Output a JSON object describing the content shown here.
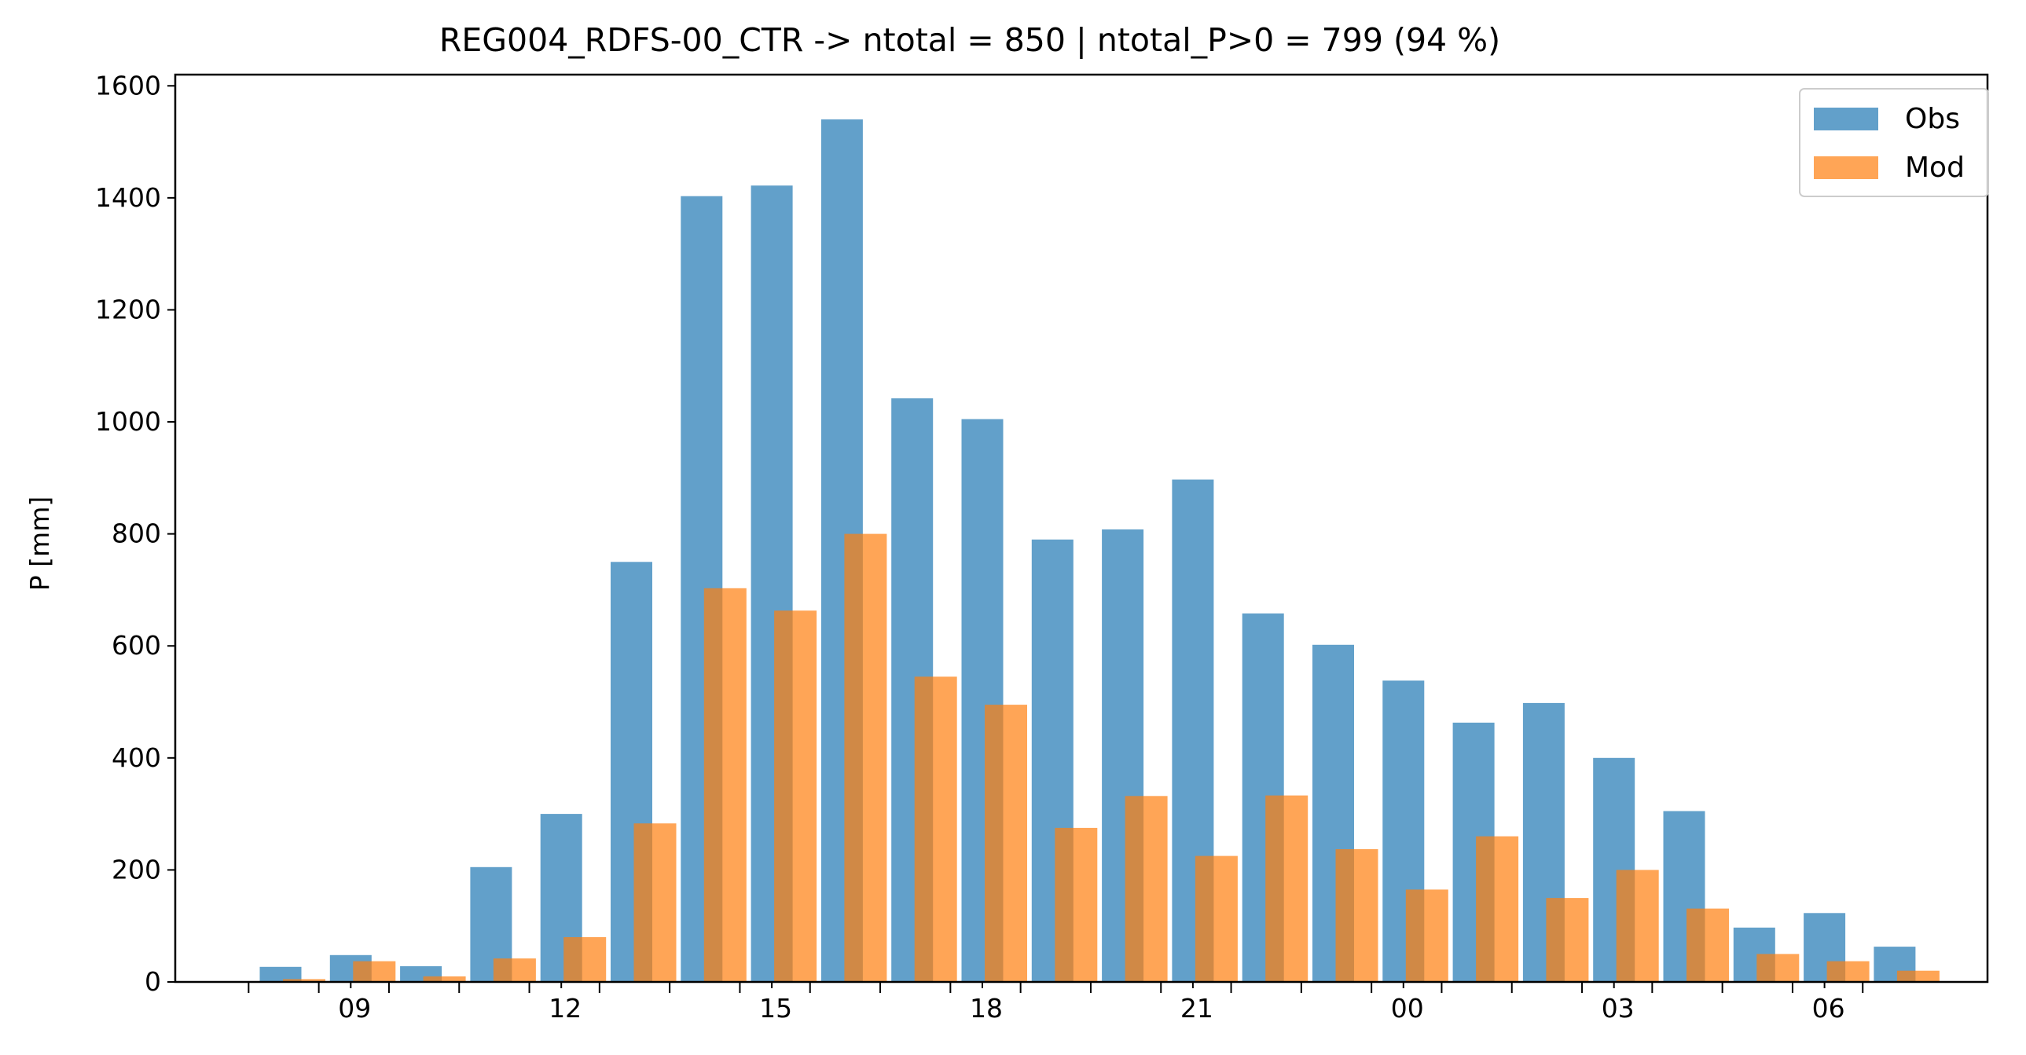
{
  "chart_data": {
    "type": "bar",
    "title": "REG004_RDFS-00_CTR -> ntotal = 850 | ntotal_P>0 = 799 (94 %)",
    "xlabel": "",
    "ylabel": "P [mm]",
    "ylim": [
      0,
      1620
    ],
    "yticks": [
      0,
      200,
      400,
      600,
      800,
      1000,
      1200,
      1400,
      1600
    ],
    "hours": [
      8,
      9,
      10,
      11,
      12,
      13,
      14,
      15,
      16,
      17,
      18,
      19,
      20,
      21,
      22,
      23,
      0,
      1,
      2,
      3,
      4,
      5,
      6,
      7
    ],
    "xtick_labels": [
      "09",
      "12",
      "15",
      "18",
      "21",
      "00",
      "03",
      "06"
    ],
    "xtick_hours": [
      9,
      12,
      15,
      18,
      21,
      0,
      3,
      6
    ],
    "series": [
      {
        "name": "Obs",
        "color": "#1f77b4",
        "opacity": 0.7,
        "values": [
          27,
          48,
          28,
          205,
          300,
          750,
          1403,
          1422,
          1540,
          1042,
          1005,
          790,
          808,
          897,
          658,
          602,
          538,
          463,
          498,
          400,
          305,
          97,
          123,
          63
        ]
      },
      {
        "name": "Mod",
        "color": "#ff7f0e",
        "opacity": 0.7,
        "values": [
          5,
          37,
          10,
          42,
          80,
          283,
          703,
          663,
          800,
          545,
          495,
          275,
          332,
          225,
          333,
          237,
          165,
          260,
          150,
          200,
          131,
          50,
          37,
          20
        ]
      }
    ],
    "legend_position": "top-right",
    "grid": false
  }
}
